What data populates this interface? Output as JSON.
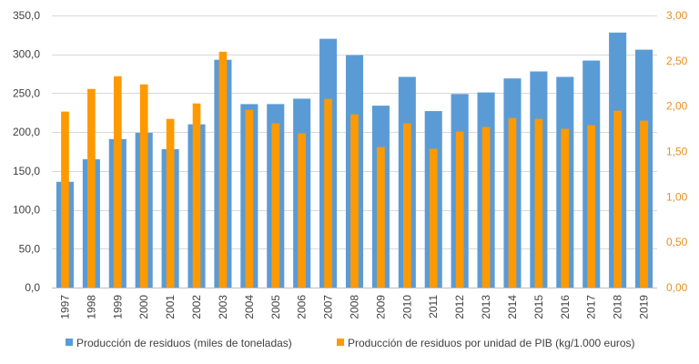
{
  "chart_data": {
    "type": "bar",
    "categories": [
      "1997",
      "1998",
      "1999",
      "2000",
      "2001",
      "2002",
      "2003",
      "2004",
      "2005",
      "2006",
      "2007",
      "2008",
      "2009",
      "2010",
      "2011",
      "2012",
      "2013",
      "2014",
      "2015",
      "2016",
      "2017",
      "2018",
      "2019"
    ],
    "series": [
      {
        "name": "Producción de residuos (miles de toneladas)",
        "axis": "left",
        "color": "#5b9bd5",
        "values": [
          136,
          165,
          191,
          199,
          178,
          210,
          293,
          236,
          236,
          243,
          320,
          299,
          234,
          271,
          227,
          249,
          251,
          269,
          278,
          271,
          292,
          328,
          306
        ]
      },
      {
        "name": "Producción de residuos por unidad de PIB (kg/1.000 euros)",
        "axis": "right",
        "color": "#ff9900",
        "values": [
          1.94,
          2.19,
          2.33,
          2.24,
          1.86,
          2.03,
          2.6,
          1.96,
          1.81,
          1.7,
          2.08,
          1.91,
          1.55,
          1.81,
          1.53,
          1.72,
          1.77,
          1.87,
          1.86,
          1.75,
          1.79,
          1.95,
          1.84
        ]
      }
    ],
    "y_left": {
      "min": 0,
      "max": 350,
      "ticks": [
        "0,0",
        "50,0",
        "100,0",
        "150,0",
        "200,0",
        "250,0",
        "300,0",
        "350,0"
      ]
    },
    "y_right": {
      "min": 0,
      "max": 3,
      "ticks": [
        "0,00",
        "0,50",
        "1,00",
        "1,50",
        "2,00",
        "2,50",
        "3,00"
      ]
    },
    "legend_position": "bottom",
    "grid": true
  }
}
